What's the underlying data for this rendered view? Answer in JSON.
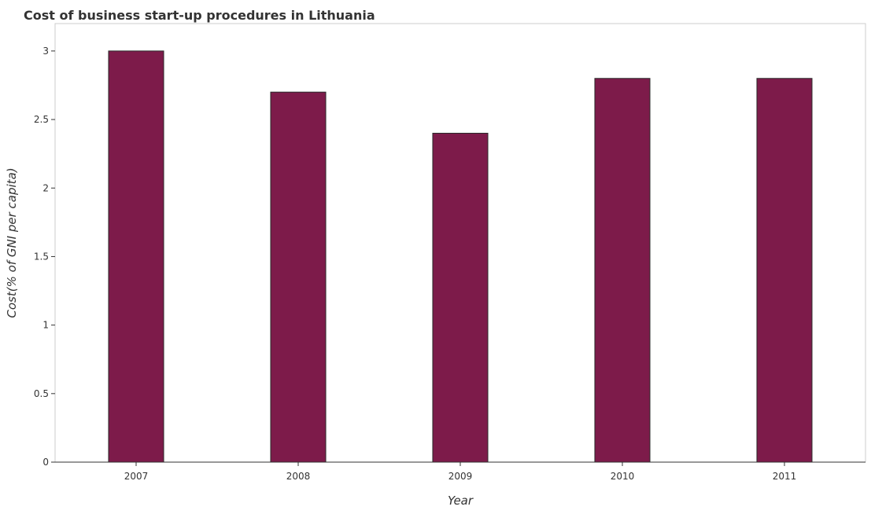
{
  "chart_data": {
    "type": "bar",
    "title": "Cost of business start-up procedures in Lithuania",
    "xlabel": "Year",
    "ylabel": "Cost(% of GNI per capita)",
    "categories": [
      "2007",
      "2008",
      "2009",
      "2010",
      "2011"
    ],
    "values": [
      3.0,
      2.7,
      2.4,
      2.8,
      2.8
    ],
    "ylim": [
      0,
      3.2
    ],
    "yticks": [
      0,
      0.5,
      1,
      1.5,
      2,
      2.5,
      3
    ],
    "ytick_labels": [
      "0",
      "0.5",
      "1",
      "1.5",
      "2",
      "2.5",
      "3"
    ],
    "grid": false,
    "bar_color": "#7d1b4a",
    "bar_stroke": "#2a2a2a"
  }
}
